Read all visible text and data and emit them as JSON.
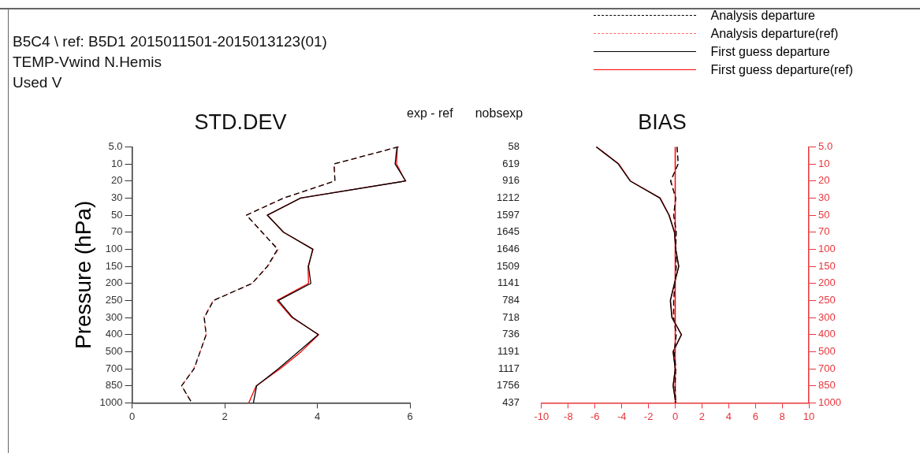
{
  "chart_data": [
    {
      "type": "line",
      "title": "STD.DEV",
      "ylabel": "Pressure (hPa)",
      "orientation": "horizontal",
      "legend": "top right",
      "grid": false,
      "annotations": [
        "B5C4 \\ ref: B5D1 2015011501-2015013123(01)",
        "TEMP-Vwind  N.Hemis",
        "Used V"
      ],
      "categories": [
        "5.0",
        "10",
        "20",
        "30",
        "50",
        "70",
        "100",
        "150",
        "200",
        "250",
        "300",
        "400",
        "500",
        "700",
        "850",
        "1000"
      ],
      "xlim": [
        0,
        6
      ],
      "xticks": [
        0,
        2,
        4,
        6
      ],
      "series": [
        {
          "name": "Analysis departure",
          "color": "#000000",
          "line_style": "dashed",
          "values": [
            5.75,
            4.36,
            4.38,
            3.27,
            2.47,
            2.81,
            3.14,
            2.92,
            2.59,
            1.76,
            1.56,
            1.6,
            1.47,
            1.34,
            1.07,
            1.29
          ]
        },
        {
          "name": "Analysis departure(ref)",
          "color": "#ff6060",
          "line_style": "dashed",
          "values": [
            5.76,
            4.37,
            4.38,
            3.28,
            2.47,
            2.8,
            3.16,
            2.93,
            2.6,
            1.75,
            1.55,
            1.6,
            1.47,
            1.33,
            1.07,
            1.29
          ]
        },
        {
          "name": "First guess departure",
          "color": "#000000",
          "line_style": "solid",
          "values": [
            5.72,
            5.68,
            5.91,
            3.64,
            2.92,
            3.27,
            3.9,
            3.81,
            3.86,
            3.16,
            3.47,
            4.02,
            3.59,
            3.16,
            2.69,
            2.62
          ]
        },
        {
          "name": "First guess departure(ref)",
          "color": "#ff0000",
          "line_style": "solid",
          "values": [
            5.73,
            5.71,
            5.9,
            3.64,
            2.92,
            3.27,
            3.91,
            3.8,
            3.81,
            3.13,
            3.45,
            4.03,
            3.65,
            3.2,
            2.68,
            2.52
          ]
        }
      ]
    },
    {
      "type": "line",
      "title": "BIAS",
      "orientation": "horizontal",
      "legend": false,
      "grid": false,
      "annotations": [
        "exp - ref",
        "nobsexp"
      ],
      "categories": [
        "5.0",
        "10",
        "20",
        "30",
        "50",
        "70",
        "100",
        "150",
        "200",
        "250",
        "300",
        "400",
        "500",
        "700",
        "850",
        "1000"
      ],
      "y2_categories": [
        "58",
        "619",
        "916",
        "1212",
        "1597",
        "1645",
        "1646",
        "1509",
        "1141",
        "784",
        "718",
        "736",
        "1191",
        "1117",
        "1756",
        "437"
      ],
      "xlim": [
        -10,
        10
      ],
      "xticks": [
        -10,
        -8,
        -6,
        -4,
        -2,
        0,
        2,
        4,
        6,
        8,
        10
      ],
      "ref_lines": [
        {
          "axis": "x",
          "value": 0,
          "color": "#ff0000"
        }
      ],
      "series": [
        {
          "color": "#000000",
          "line_style": "dashed",
          "values": [
            0.14,
            0.23,
            -0.35,
            0.04,
            -0.12,
            0.08,
            0.04,
            0.08,
            -0.02,
            -0.12,
            -0.12,
            0.08,
            -0.08,
            0.04,
            -0.02,
            0.04
          ]
        },
        {
          "color": "#ff6060",
          "line_style": "dashed",
          "values": [
            0.12,
            0.2,
            -0.3,
            0.02,
            -0.1,
            0.06,
            0.04,
            0.06,
            -0.02,
            -0.1,
            -0.1,
            0.06,
            -0.06,
            0.04,
            -0.02,
            0.04
          ]
        },
        {
          "color": "#000000",
          "line_style": "solid",
          "values": [
            -5.91,
            -4.26,
            -3.37,
            -1.15,
            -0.47,
            -0.06,
            0.04,
            0.27,
            -0.06,
            -0.37,
            -0.25,
            0.47,
            -0.16,
            0,
            -0.16,
            0.04
          ]
        },
        {
          "color": "#ff0000",
          "line_style": "solid",
          "values": [
            -5.88,
            -4.22,
            -3.35,
            -1.12,
            -0.45,
            -0.05,
            0.04,
            0.25,
            -0.05,
            -0.35,
            -0.23,
            0.45,
            -0.15,
            0,
            -0.15,
            0.04
          ]
        }
      ]
    }
  ]
}
